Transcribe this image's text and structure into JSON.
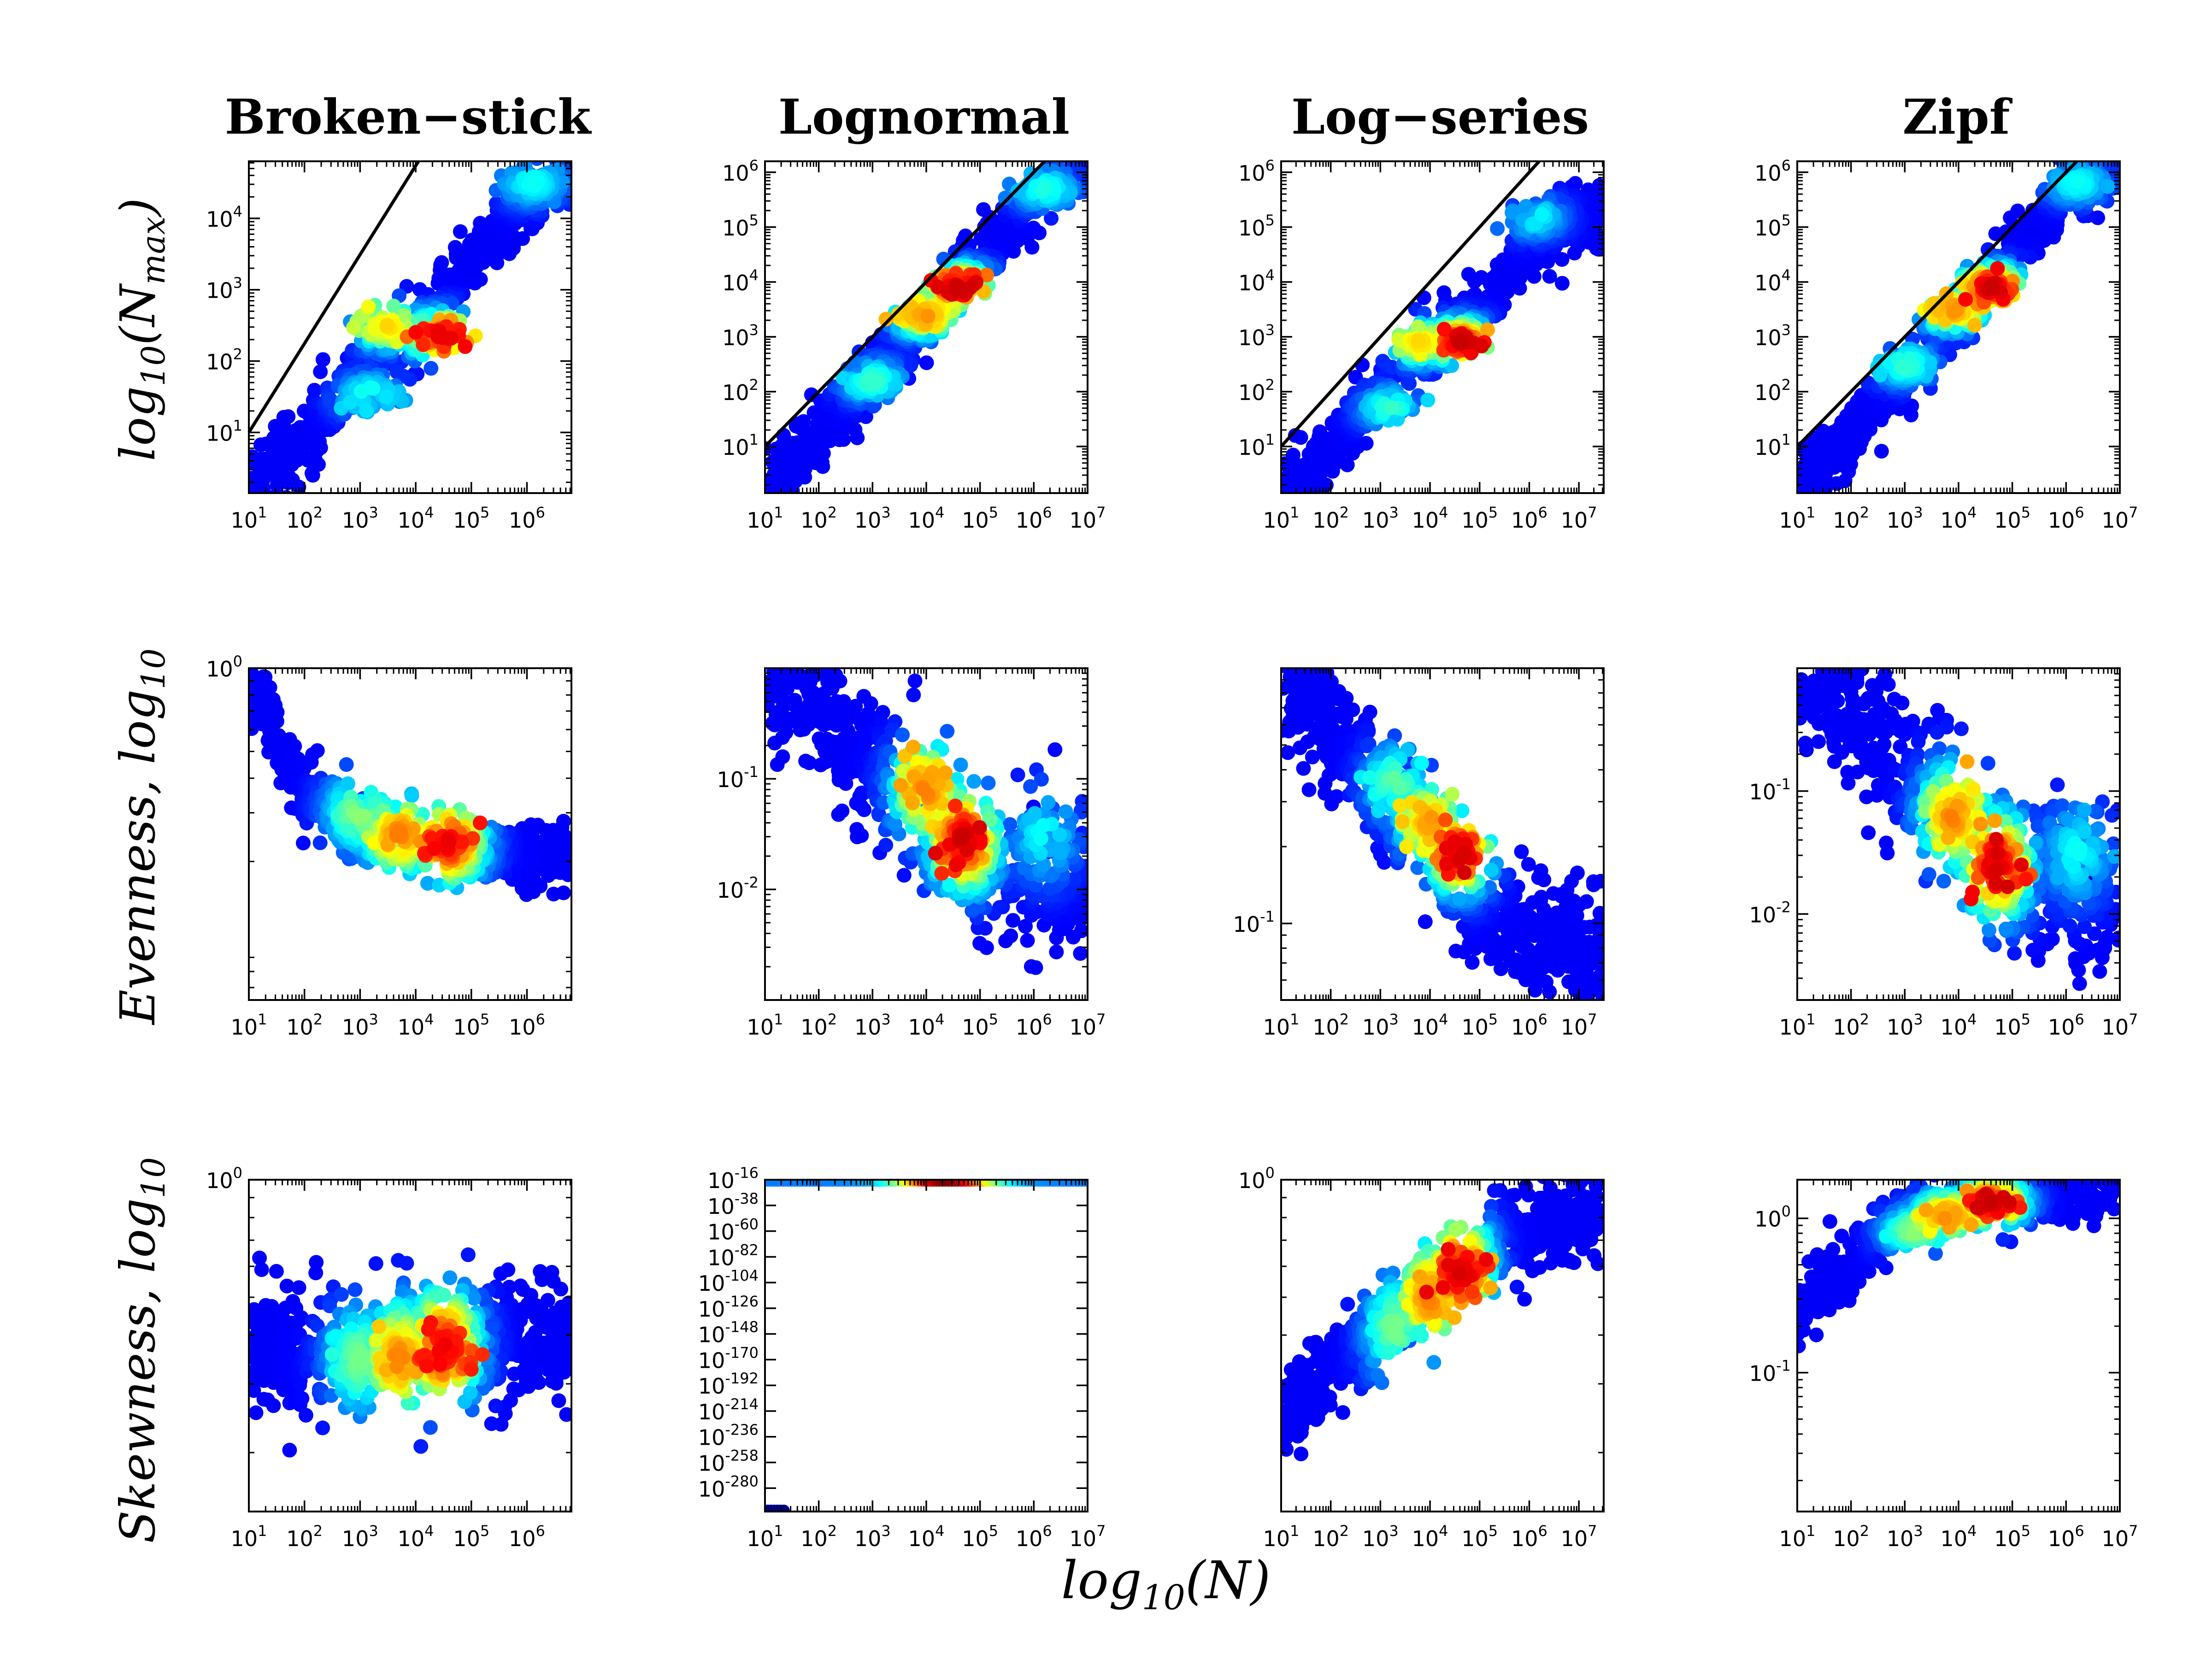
{
  "figure": {
    "column_titles": [
      "Broken−stick",
      "Lognormal",
      "Log−series",
      "Zipf"
    ],
    "row_ylabels": [
      {
        "base": "log",
        "sub": "10",
        "rest": "(N",
        "rest_sub": "max",
        "close": ")"
      },
      {
        "base": "Evenness, log",
        "sub": "10"
      },
      {
        "base": "Skewness, log",
        "sub": "10"
      }
    ],
    "xlabel": {
      "base": "log",
      "sub": "10",
      "rest": "(N)"
    }
  },
  "colormap": [
    "#00007f",
    "#0000ff",
    "#007fff",
    "#00ffff",
    "#7fff7f",
    "#ffff00",
    "#ff7f00",
    "#ff0000",
    "#7f0000"
  ],
  "chart_data": [
    {
      "id": "bs-nmax",
      "type": "scatter",
      "row": 0,
      "col": 0,
      "xlog": true,
      "ylog": true,
      "xlim": [
        1,
        6.8
      ],
      "ylim": [
        0.15,
        4.8
      ],
      "xticks": [
        1,
        2,
        3,
        4,
        5,
        6
      ],
      "yticks": [
        1,
        2,
        3,
        4
      ],
      "line": [
        [
          1,
          1
        ],
        [
          4.05,
          4.8
        ]
      ],
      "trend": [
        [
          1,
          0.25
        ],
        [
          2,
          0.9
        ],
        [
          3,
          1.9
        ],
        [
          4,
          2.4
        ],
        [
          5,
          3.4
        ],
        [
          6,
          4.3
        ],
        [
          6.8,
          4.7
        ]
      ],
      "spread": 0.25,
      "hotspots": [
        [
          4.5,
          2.35,
          0.9
        ],
        [
          3.5,
          2.5,
          0.62
        ],
        [
          3.2,
          1.5,
          0.35
        ],
        [
          6.1,
          4.5,
          0.3
        ]
      ]
    },
    {
      "id": "ln-nmax",
      "type": "scatter",
      "row": 0,
      "col": 1,
      "xlog": true,
      "ylog": true,
      "xlim": [
        1,
        7
      ],
      "ylim": [
        0.15,
        6.2
      ],
      "xticks": [
        1,
        2,
        3,
        4,
        5,
        6,
        7
      ],
      "yticks": [
        1,
        2,
        3,
        4,
        5,
        6
      ],
      "line": [
        [
          1,
          1
        ],
        [
          6.2,
          6.2
        ]
      ],
      "trend": [
        [
          1,
          0.3
        ],
        [
          2,
          1.2
        ],
        [
          3,
          2.3
        ],
        [
          4,
          3.4
        ],
        [
          5,
          4.4
        ],
        [
          6,
          5.5
        ],
        [
          7,
          6.1
        ]
      ],
      "spread": 0.3,
      "hotspots": [
        [
          4.6,
          3.9,
          0.92
        ],
        [
          4.0,
          3.4,
          0.7
        ],
        [
          3.0,
          2.2,
          0.35
        ],
        [
          6.2,
          5.7,
          0.32
        ]
      ]
    },
    {
      "id": "ls-nmax",
      "type": "scatter",
      "row": 0,
      "col": 2,
      "xlog": true,
      "ylog": true,
      "xlim": [
        1,
        7.5
      ],
      "ylim": [
        0.15,
        6.2
      ],
      "xticks": [
        1,
        2,
        3,
        4,
        5,
        6,
        7
      ],
      "yticks": [
        1,
        2,
        3,
        4,
        5,
        6
      ],
      "line": [
        [
          1,
          1
        ],
        [
          6.2,
          6.2
        ]
      ],
      "trend": [
        [
          1,
          0.2
        ],
        [
          2,
          0.9
        ],
        [
          3,
          2.1
        ],
        [
          4,
          2.8
        ],
        [
          5,
          3.5
        ],
        [
          6,
          4.6
        ],
        [
          7,
          5.2
        ]
      ],
      "spread": 0.3,
      "hotspots": [
        [
          4.6,
          2.9,
          0.92
        ],
        [
          3.8,
          2.9,
          0.62
        ],
        [
          3.2,
          1.7,
          0.35
        ],
        [
          6.1,
          5.2,
          0.3
        ]
      ]
    },
    {
      "id": "zipf-nmax",
      "type": "scatter",
      "row": 0,
      "col": 3,
      "xlog": true,
      "ylog": true,
      "xlim": [
        1,
        7
      ],
      "ylim": [
        0.15,
        6.2
      ],
      "xticks": [
        1,
        2,
        3,
        4,
        5,
        6,
        7
      ],
      "yticks": [
        1,
        2,
        3,
        4,
        5,
        6
      ],
      "line": [
        [
          1,
          1
        ],
        [
          6.2,
          6.2
        ]
      ],
      "trend": [
        [
          1,
          0.3
        ],
        [
          2,
          1.2
        ],
        [
          3,
          2.3
        ],
        [
          4,
          3.4
        ],
        [
          5,
          4.5
        ],
        [
          6,
          5.6
        ],
        [
          7,
          6.1
        ]
      ],
      "spread": 0.3,
      "hotspots": [
        [
          4.6,
          3.9,
          0.92
        ],
        [
          3.9,
          3.5,
          0.7
        ],
        [
          3.0,
          2.5,
          0.35
        ],
        [
          6.2,
          5.8,
          0.3
        ]
      ]
    },
    {
      "id": "bs-even",
      "type": "scatter",
      "row": 1,
      "col": 0,
      "xlog": true,
      "ylog": true,
      "xlim": [
        1,
        6.8
      ],
      "ylim": [
        -1.2,
        0
      ],
      "xticks": [
        1,
        2,
        3,
        4,
        5,
        6
      ],
      "yticks": [
        0
      ],
      "trend": [
        [
          1,
          -0.05
        ],
        [
          1.5,
          -0.25
        ],
        [
          2,
          -0.45
        ],
        [
          3,
          -0.58
        ],
        [
          4,
          -0.63
        ],
        [
          5,
          -0.66
        ],
        [
          6,
          -0.67
        ],
        [
          6.8,
          -0.67
        ]
      ],
      "spread": 0.06,
      "hotspots": [
        [
          4.6,
          -0.63,
          0.88
        ],
        [
          3.7,
          -0.6,
          0.72
        ],
        [
          3.0,
          -0.52,
          0.45
        ]
      ]
    },
    {
      "id": "ln-even",
      "type": "scatter",
      "row": 1,
      "col": 1,
      "xlog": true,
      "ylog": true,
      "xlim": [
        1,
        7
      ],
      "ylim": [
        -3,
        0
      ],
      "xticks": [
        1,
        2,
        3,
        4,
        5,
        6,
        7
      ],
      "yticks": [
        -2,
        -1
      ],
      "trend": [
        [
          1.5,
          -0.05
        ],
        [
          2,
          -0.3
        ],
        [
          3,
          -0.9
        ],
        [
          4,
          -1.3
        ],
        [
          5,
          -1.75
        ],
        [
          6,
          -1.8
        ],
        [
          7,
          -2.0
        ]
      ],
      "spread": 0.35,
      "hotspots": [
        [
          4.7,
          -1.55,
          0.92
        ],
        [
          4.0,
          -1.1,
          0.72
        ],
        [
          6.2,
          -1.5,
          0.3
        ]
      ]
    },
    {
      "id": "ls-even",
      "type": "scatter",
      "row": 1,
      "col": 2,
      "xlog": true,
      "ylog": true,
      "xlim": [
        1,
        7.5
      ],
      "ylim": [
        -1.3,
        0
      ],
      "xticks": [
        1,
        2,
        3,
        4,
        5,
        6,
        7
      ],
      "yticks": [
        -1
      ],
      "trend": [
        [
          1,
          0
        ],
        [
          2,
          -0.25
        ],
        [
          3,
          -0.5
        ],
        [
          4,
          -0.7
        ],
        [
          5,
          -0.95
        ],
        [
          6,
          -1.05
        ],
        [
          7,
          -1.1
        ]
      ],
      "spread": 0.12,
      "hotspots": [
        [
          4.6,
          -0.72,
          0.92
        ],
        [
          4.0,
          -0.6,
          0.7
        ],
        [
          3.3,
          -0.45,
          0.4
        ]
      ]
    },
    {
      "id": "zipf-even",
      "type": "scatter",
      "row": 1,
      "col": 3,
      "xlog": true,
      "ylog": true,
      "xlim": [
        1,
        7
      ],
      "ylim": [
        -2.7,
        0
      ],
      "xticks": [
        1,
        2,
        3,
        4,
        5,
        6,
        7
      ],
      "yticks": [
        -2,
        -1
      ],
      "trend": [
        [
          1.5,
          -0.05
        ],
        [
          2,
          -0.3
        ],
        [
          3,
          -0.85
        ],
        [
          4,
          -1.3
        ],
        [
          5,
          -1.75
        ],
        [
          6,
          -1.7
        ],
        [
          7,
          -2.0
        ]
      ],
      "spread": 0.33,
      "hotspots": [
        [
          4.7,
          -1.6,
          0.92
        ],
        [
          3.9,
          -1.2,
          0.72
        ],
        [
          6.2,
          -1.5,
          0.3
        ]
      ]
    },
    {
      "id": "bs-skew",
      "type": "scatter",
      "row": 2,
      "col": 0,
      "xlog": true,
      "ylog": true,
      "xlim": [
        1,
        6.8
      ],
      "ylim": [
        -0.85,
        0
      ],
      "xticks": [
        1,
        2,
        3,
        4,
        5,
        6
      ],
      "yticks": [
        0
      ],
      "trend": [
        [
          1,
          -0.42
        ],
        [
          2,
          -0.45
        ],
        [
          3,
          -0.45
        ],
        [
          4,
          -0.42
        ],
        [
          5,
          -0.42
        ],
        [
          6,
          -0.41
        ],
        [
          6.8,
          -0.4
        ]
      ],
      "spread": 0.08,
      "hotspots": [
        [
          4.5,
          -0.43,
          0.88
        ],
        [
          3.7,
          -0.46,
          0.72
        ],
        [
          3.0,
          -0.46,
          0.42
        ]
      ]
    },
    {
      "id": "ln-skew",
      "type": "scatter",
      "row": 2,
      "col": 1,
      "xlog": true,
      "ylog": true,
      "xlim": [
        1,
        7
      ],
      "ylim": [
        -300,
        -16
      ],
      "xticks": [
        1,
        2,
        3,
        4,
        5,
        6,
        7
      ],
      "yticks": [
        -16,
        -38,
        -60,
        -82,
        -104,
        -126,
        -148,
        -170,
        -192,
        -214,
        -236,
        -258,
        -280
      ],
      "topband": true
    },
    {
      "id": "ls-skew",
      "type": "scatter",
      "row": 2,
      "col": 2,
      "xlog": true,
      "ylog": true,
      "xlim": [
        1,
        7.5
      ],
      "ylim": [
        -0.85,
        0
      ],
      "xticks": [
        1,
        2,
        3,
        4,
        5,
        6,
        7
      ],
      "yticks": [
        0
      ],
      "trend": [
        [
          1,
          -0.6
        ],
        [
          2,
          -0.48
        ],
        [
          3,
          -0.38
        ],
        [
          4,
          -0.28
        ],
        [
          5,
          -0.18
        ],
        [
          6,
          -0.12
        ],
        [
          7,
          -0.08
        ]
      ],
      "spread": 0.06,
      "hotspots": [
        [
          4.6,
          -0.24,
          0.9
        ],
        [
          4.0,
          -0.3,
          0.72
        ],
        [
          3.3,
          -0.38,
          0.42
        ]
      ]
    },
    {
      "id": "zipf-skew",
      "type": "scatter",
      "row": 2,
      "col": 3,
      "xlog": true,
      "ylog": true,
      "xlim": [
        1,
        7
      ],
      "ylim": [
        -1.9,
        0.25
      ],
      "xticks": [
        1,
        2,
        3,
        4,
        5,
        6,
        7
      ],
      "yticks": [
        -1,
        0
      ],
      "trend": [
        [
          1,
          -0.6
        ],
        [
          2,
          -0.3
        ],
        [
          3,
          0.0
        ],
        [
          4,
          0.1
        ],
        [
          5,
          0.15
        ],
        [
          6,
          0.2
        ],
        [
          7,
          0.22
        ]
      ],
      "spread": 0.1,
      "hotspots": [
        [
          4.6,
          0.1,
          0.92
        ],
        [
          3.8,
          0.02,
          0.72
        ],
        [
          3.2,
          -0.08,
          0.45
        ]
      ]
    }
  ]
}
